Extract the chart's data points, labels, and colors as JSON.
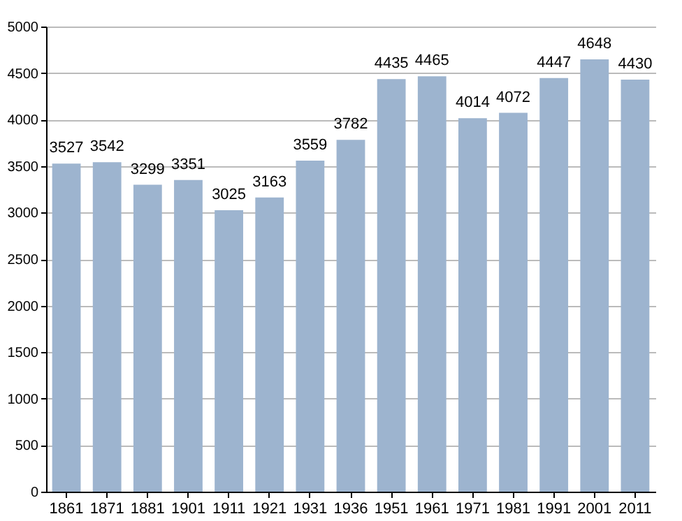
{
  "chart_data": {
    "type": "bar",
    "categories": [
      "1861",
      "1871",
      "1881",
      "1901",
      "1911",
      "1921",
      "1931",
      "1936",
      "1951",
      "1961",
      "1971",
      "1981",
      "1991",
      "2001",
      "2011"
    ],
    "values": [
      3527,
      3542,
      3299,
      3351,
      3025,
      3163,
      3559,
      3782,
      4435,
      4465,
      4014,
      4072,
      4447,
      4648,
      4430
    ],
    "color": "#9db4cf",
    "ylim": [
      0,
      5000
    ],
    "yticks": [
      0,
      500,
      1000,
      1500,
      2000,
      2500,
      3000,
      3500,
      4000,
      4500,
      5000
    ],
    "grid": "y",
    "data_labels": true
  }
}
